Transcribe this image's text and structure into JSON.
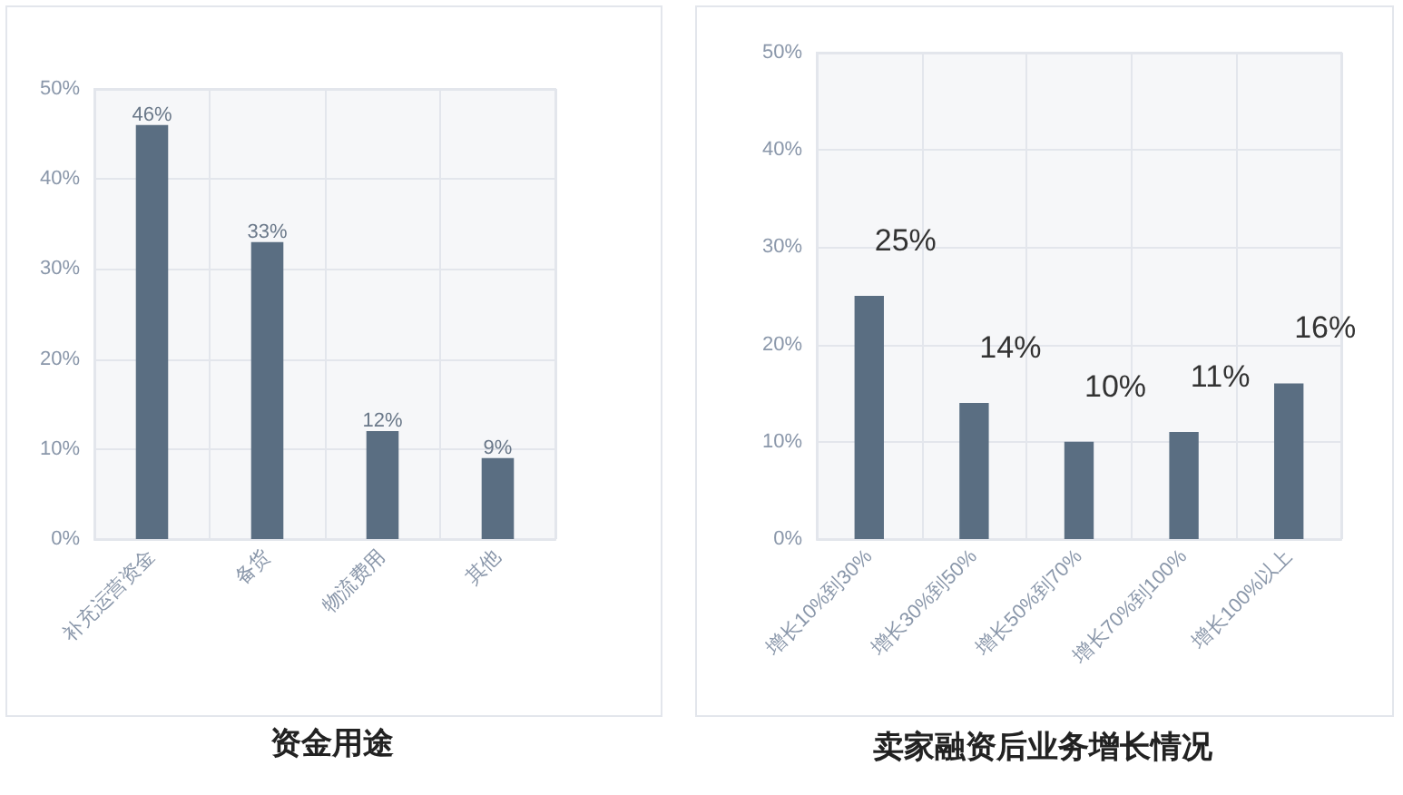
{
  "chart_data": [
    {
      "type": "bar",
      "title": "资金用途",
      "categories": [
        "补充运营资金",
        "备货",
        "物流费用",
        "其他"
      ],
      "series": [
        {
          "color": "#5a6e82",
          "values": [
            46,
            33,
            12,
            9
          ],
          "value_labels": [
            "46%",
            "33%",
            "12%",
            "9%"
          ]
        }
      ],
      "ylim": [
        0,
        50
      ],
      "yticks": [
        {
          "value": 0,
          "label": "0%"
        },
        {
          "value": 10,
          "label": "10%"
        },
        {
          "value": 20,
          "label": "20%"
        },
        {
          "value": 30,
          "label": "30%"
        },
        {
          "value": 40,
          "label": "40%"
        },
        {
          "value": 50,
          "label": "50%"
        }
      ],
      "grid": true
    },
    {
      "type": "bar",
      "title": "卖家融资后业务增长情况",
      "categories": [
        "增长10%到30%",
        "增长30%到50%",
        "增长50%到70%",
        "增长70%到100%",
        "增长100%以上"
      ],
      "series": [
        {
          "color": "#5a6e82",
          "values": [
            25,
            14,
            10,
            11,
            16
          ],
          "value_labels": [
            "25%",
            "14%",
            "10%",
            "11%",
            "16%"
          ]
        }
      ],
      "ylim": [
        0,
        50
      ],
      "yticks": [
        {
          "value": 0,
          "label": "0%"
        },
        {
          "value": 10,
          "label": "10%"
        },
        {
          "value": 20,
          "label": "20%"
        },
        {
          "value": 30,
          "label": "30%"
        },
        {
          "value": 40,
          "label": "40%"
        },
        {
          "value": 50,
          "label": "50%"
        }
      ],
      "grid": true
    }
  ]
}
